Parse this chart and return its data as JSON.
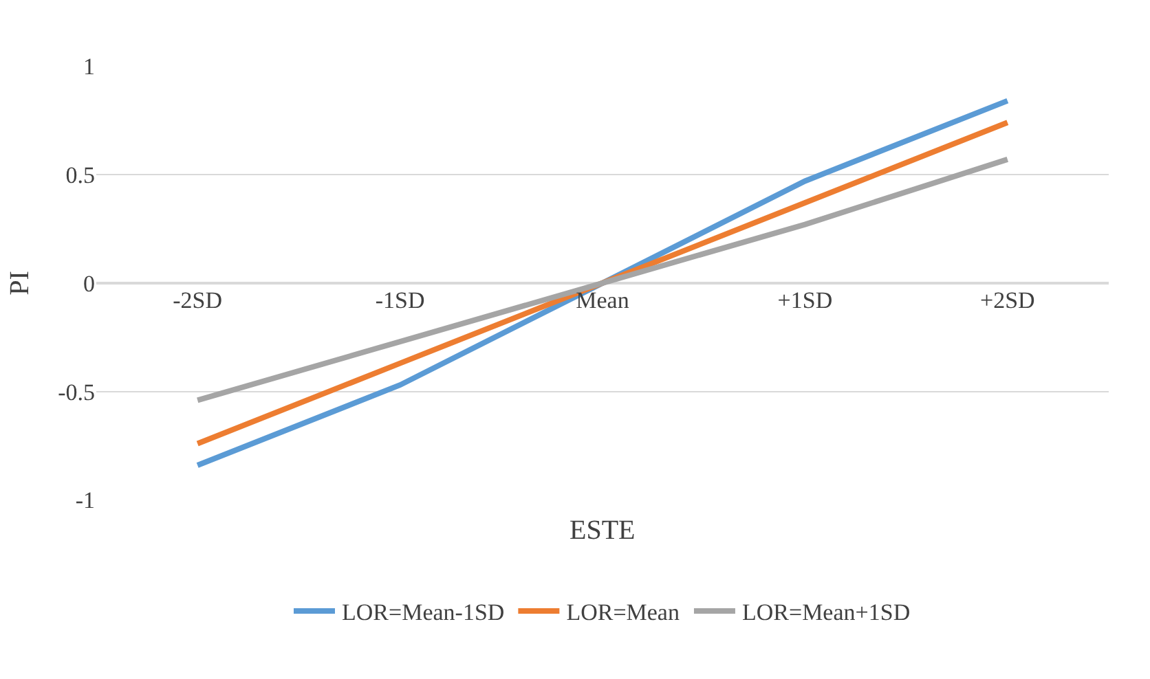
{
  "chart_data": {
    "type": "line",
    "xlabel": "ESTE",
    "ylabel": "PI",
    "categories": [
      "-2SD",
      "-1SD",
      "Mean",
      "+1SD",
      "+2SD"
    ],
    "series": [
      {
        "name": "LOR=Mean-1SD",
        "color": "#5b9bd5",
        "values": [
          -0.84,
          -0.47,
          0,
          0.47,
          0.84
        ]
      },
      {
        "name": "LOR=Mean",
        "color": "#ed7d31",
        "values": [
          -0.74,
          -0.37,
          0,
          0.37,
          0.74
        ]
      },
      {
        "name": "LOR=Mean+1SD",
        "color": "#a5a5a5",
        "values": [
          -0.54,
          -0.27,
          0,
          0.27,
          0.57
        ]
      }
    ],
    "ylim": [
      -1,
      1
    ],
    "yticks": [
      -1,
      -0.5,
      0,
      0.5,
      1
    ],
    "grid": "y",
    "legend": "bottom",
    "marker": "none",
    "line_style": "solid"
  }
}
